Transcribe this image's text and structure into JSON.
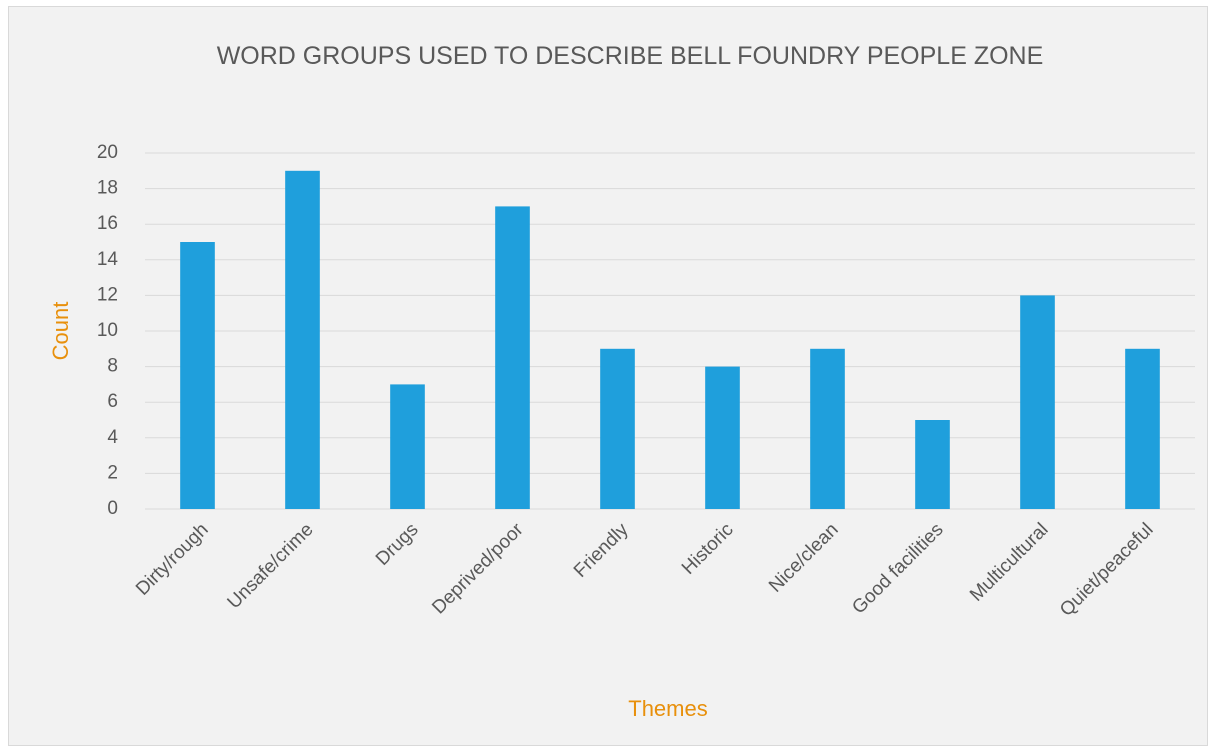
{
  "chart_data": {
    "type": "bar",
    "title": "WORD GROUPS USED TO DESCRIBE BELL FOUNDRY PEOPLE ZONE",
    "x_label": "Themes",
    "y_label": "Count",
    "categories": [
      "Dirty/rough",
      "Unsafe/crime",
      "Drugs",
      "Deprived/poor",
      "Friendly",
      "Historic",
      "Nice/clean",
      "Good facilities",
      "Multicultural",
      "Quiet/peaceful"
    ],
    "values": [
      15,
      19,
      7,
      17,
      9,
      8,
      9,
      5,
      12,
      9
    ],
    "color": "#1f9fdc",
    "ylim": [
      0,
      20
    ],
    "yticks": [
      0,
      2,
      4,
      6,
      8,
      10,
      12,
      14,
      16,
      18,
      20
    ],
    "grid": true
  }
}
